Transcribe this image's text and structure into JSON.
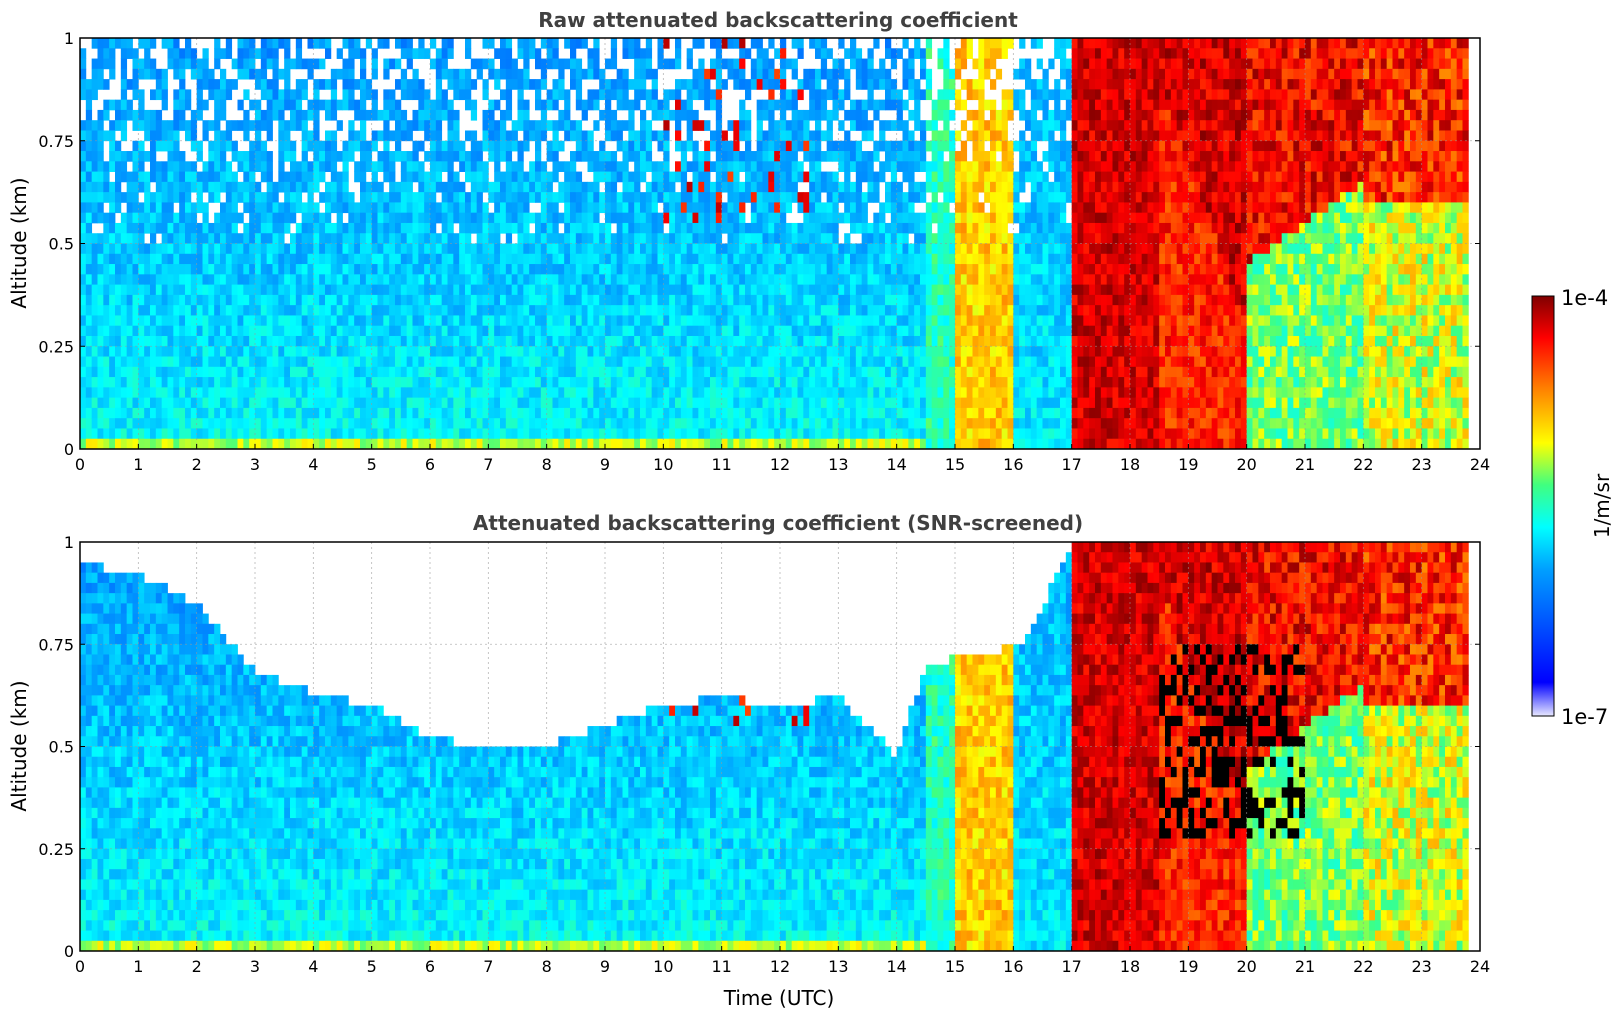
{
  "chart_data": [
    {
      "type": "heatmap",
      "title": "Raw attenuated backscattering coefficient",
      "xlabel": "",
      "ylabel": "Altitude (km)",
      "xlim": [
        0,
        24
      ],
      "ylim": [
        0,
        1
      ],
      "xticks": [
        "0",
        "1",
        "2",
        "3",
        "4",
        "5",
        "6",
        "7",
        "8",
        "9",
        "10",
        "11",
        "12",
        "13",
        "14",
        "15",
        "16",
        "17",
        "18",
        "19",
        "20",
        "21",
        "22",
        "23",
        "24"
      ],
      "yticks": [
        "0",
        "0.25",
        "0.5",
        "0.75",
        "1"
      ],
      "grid": true,
      "z_units": "1/m/sr",
      "z_scale": "log",
      "zlim": [
        1e-07,
        0.0001
      ],
      "time_bands": [
        {
          "start": 0,
          "end": 14.5,
          "log10_backscatter_low": -6.1,
          "log10_backscatter_high": -5.6,
          "upper_noise": true
        },
        {
          "start": 10.0,
          "end": 12.5,
          "altitude_from": 0.55,
          "altitude_to": 1.0,
          "log10_backscatter_low": -4.4,
          "log10_backscatter_high": -4.1,
          "note_scattered": true
        },
        {
          "start": 14.5,
          "end": 15.0,
          "log10_backscatter_low": -5.6,
          "log10_backscatter_high": -5.3
        },
        {
          "start": 15.0,
          "end": 16.0,
          "log10_backscatter_low": -5.1,
          "log10_backscatter_high": -4.8
        },
        {
          "start": 16.0,
          "end": 17.0,
          "log10_backscatter_low": -6.0,
          "log10_backscatter_high": -5.6,
          "upper_noise": true
        },
        {
          "start": 17.0,
          "end": 17.2,
          "log10_backscatter_low": -4.7,
          "log10_backscatter_high": -4.6
        },
        {
          "start": 17.2,
          "end": 18.5,
          "log10_backscatter_low": -4.4,
          "log10_backscatter_high": -4.1
        },
        {
          "start": 18.5,
          "end": 20.0,
          "log10_backscatter_low": -4.3,
          "log10_backscatter_high": -4.1,
          "cloud_base_km": [
            0.9,
            0.3
          ]
        },
        {
          "start": 20.0,
          "end": 22.0,
          "log10_backscatter_low": -5.4,
          "log10_backscatter_high": -4.3,
          "cloud_base_km": [
            0.45,
            0.65
          ]
        },
        {
          "start": 22.0,
          "end": 23.8,
          "log10_backscatter_low": -5.3,
          "log10_backscatter_high": -4.2
        }
      ]
    },
    {
      "type": "heatmap",
      "title": "Attenuated backscattering coefficient (SNR-screened)",
      "xlabel": "Time (UTC)",
      "ylabel": "Altitude (km)",
      "xlim": [
        0,
        24
      ],
      "ylim": [
        0,
        1
      ],
      "xticks": [
        "0",
        "1",
        "2",
        "3",
        "4",
        "5",
        "6",
        "7",
        "8",
        "9",
        "10",
        "11",
        "12",
        "13",
        "14",
        "15",
        "16",
        "17",
        "18",
        "19",
        "20",
        "21",
        "22",
        "23",
        "24"
      ],
      "yticks": [
        "0",
        "0.25",
        "0.5",
        "0.75",
        "1"
      ],
      "grid": true,
      "z_units": "1/m/sr",
      "z_scale": "log",
      "zlim": [
        1e-07,
        0.0001
      ],
      "valid_data_top_km": [
        {
          "t": 0,
          "alt": 0.95
        },
        {
          "t": 1,
          "alt": 0.92
        },
        {
          "t": 2,
          "alt": 0.85
        },
        {
          "t": 3,
          "alt": 0.68
        },
        {
          "t": 4,
          "alt": 0.63
        },
        {
          "t": 5,
          "alt": 0.6
        },
        {
          "t": 6,
          "alt": 0.52
        },
        {
          "t": 7,
          "alt": 0.5
        },
        {
          "t": 8,
          "alt": 0.5
        },
        {
          "t": 9,
          "alt": 0.55
        },
        {
          "t": 10,
          "alt": 0.6
        },
        {
          "t": 11,
          "alt": 0.62
        },
        {
          "t": 12,
          "alt": 0.6
        },
        {
          "t": 13,
          "alt": 0.62
        },
        {
          "t": 14,
          "alt": 0.48
        },
        {
          "t": 14.5,
          "alt": 0.7
        },
        {
          "t": 16.2,
          "alt": 0.75
        },
        {
          "t": 17,
          "alt": 1.0
        }
      ],
      "attenuated_region": {
        "start": 18.5,
        "end": 21,
        "note": "black (no valid signal) above cloud layer"
      }
    }
  ],
  "colorbar": {
    "label": "1/m/sr",
    "max_label": "1e-4",
    "min_label": "1e-7",
    "colormap": "jet"
  }
}
